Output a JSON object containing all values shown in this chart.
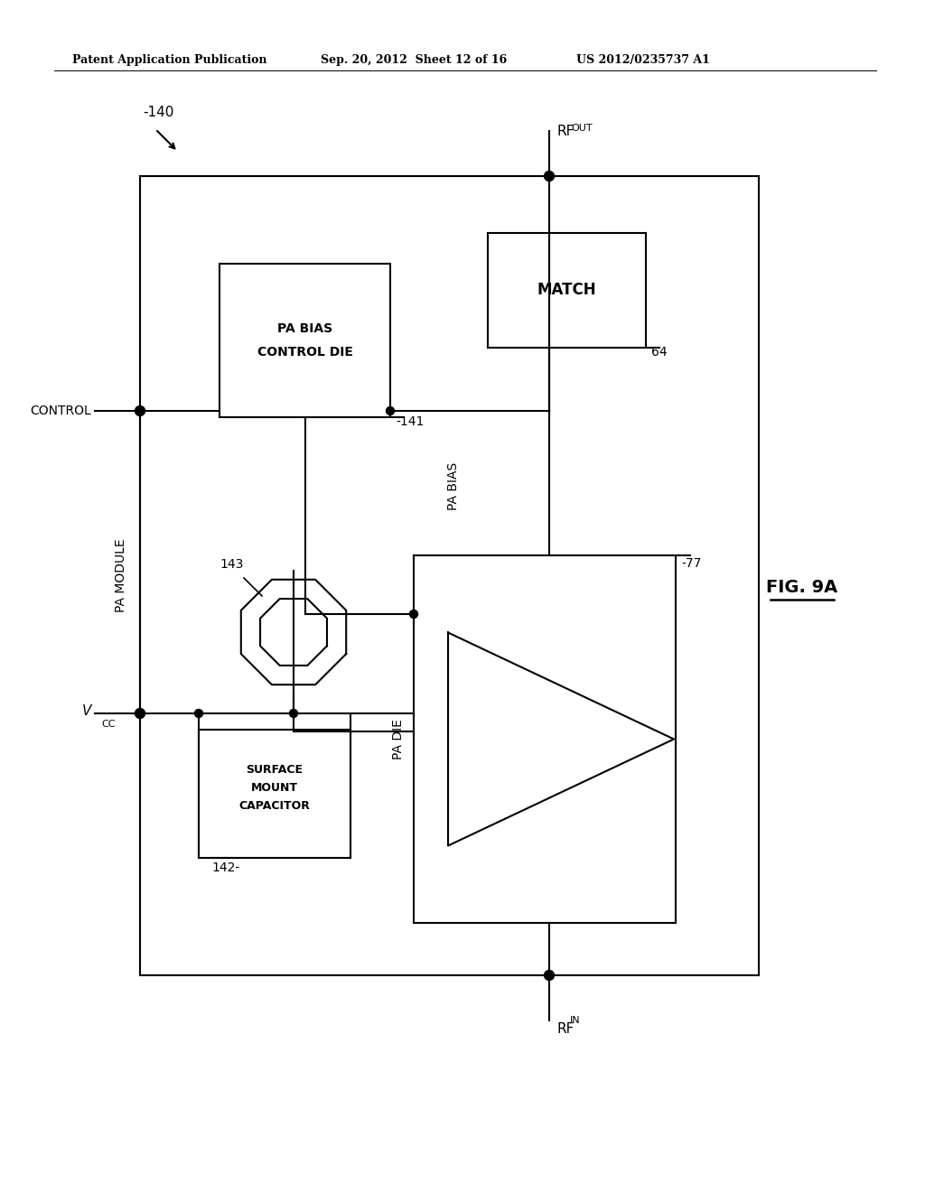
{
  "bg_color": "#ffffff",
  "line_color": "#000000",
  "header_left": "Patent Application Publication",
  "header_mid": "Sep. 20, 2012  Sheet 12 of 16",
  "header_right": "US 2012/0235737 A1",
  "fig_label": "FIG. 9A",
  "label_140": "-140",
  "label_141": "-141",
  "label_142": "142-",
  "label_143": "143",
  "label_64": "64",
  "label_77": "-77",
  "label_control": "CONTROL",
  "label_vcc": "V",
  "label_vcc_sub": "CC",
  "label_pa_module": "PA MODULE",
  "label_rf_out": "RF",
  "label_rf_out_sub": "OUT",
  "label_rf_in": "RF",
  "label_rf_in_sub": "IN",
  "label_pa_bias": "PA BIAS",
  "label_pa_die": "PA DIE",
  "box_match_text": "MATCH",
  "box_bias_line1": "PA BIAS",
  "box_bias_line2": "CONTROL DIE",
  "box_smc_line1": "SURFACE",
  "box_smc_line2": "MOUNT",
  "box_smc_line3": "CAPACITOR"
}
